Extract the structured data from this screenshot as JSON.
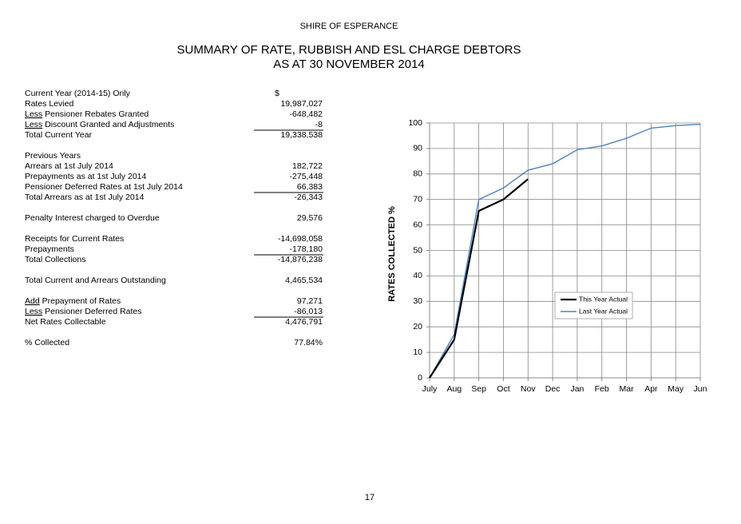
{
  "header": {
    "org": "SHIRE OF ESPERANCE",
    "title": "SUMMARY OF RATE, RUBBISH AND ESL CHARGE DEBTORS",
    "subtitle": "AS AT 30 NOVEMBER 2014"
  },
  "table": {
    "groups": [
      [
        {
          "label": "Current Year (2014-15) Only",
          "value": "$"
        },
        {
          "label": "Rates Levied",
          "value": "19,987,027"
        },
        {
          "prefix": "Less",
          "label": " Pensioner Rebates Granted",
          "value": "-648,482"
        },
        {
          "prefix": "Less",
          "label": " Discount Granted and Adjustments",
          "value": "-8",
          "rule": true
        },
        {
          "label": "Total Current Year",
          "value": "19,338,538"
        }
      ],
      [
        {
          "label": "Previous Years"
        },
        {
          "label": "Arrears at 1st July 2014",
          "value": "182,722"
        },
        {
          "label": "Prepayments as at 1st July 2014",
          "value": "-275,448"
        },
        {
          "label": "Pensioner Deferred Rates at 1st July 2014",
          "value": "66,383",
          "rule": true
        },
        {
          "label": "Total Arrears as at 1st July 2014",
          "value": "-26,343"
        }
      ],
      [
        {
          "label": "Penalty Interest charged to Overdue",
          "value": "29,576"
        }
      ],
      [
        {
          "label": "Receipts for Current Rates",
          "value": "-14,698,058"
        },
        {
          "label": "Prepayments",
          "value": "-178,180",
          "rule": true
        },
        {
          "label": "Total Collections",
          "value": "-14,876,238"
        }
      ],
      [
        {
          "label": "Total Current and Arrears Outstanding",
          "value": "4,465,534"
        }
      ],
      [
        {
          "prefix": "Add",
          "label": " Prepayment of Rates",
          "value": "97,271"
        },
        {
          "prefix": "Less",
          "label": " Pensioner Deferred Rates",
          "value": "-86,013",
          "rule": true
        },
        {
          "label": "Net Rates Collectable",
          "value": "4,476,791"
        }
      ],
      [
        {
          "label": "% Collected",
          "value": "77.84%"
        }
      ]
    ]
  },
  "chart_data": {
    "type": "line",
    "y_label": "RATES COLLECTED %",
    "categories": [
      "July",
      "Aug",
      "Sep",
      "Oct",
      "Nov",
      "Dec",
      "Jan",
      "Feb",
      "Mar",
      "Apr",
      "May",
      "Jun"
    ],
    "series": [
      {
        "name": "This Year Actual",
        "color": "#000000",
        "values": [
          0,
          15,
          65.5,
          70,
          78,
          null,
          null,
          null,
          null,
          null,
          null,
          null
        ]
      },
      {
        "name": "Last Year Actual",
        "color": "#4f81bd",
        "values": [
          0,
          17,
          70,
          74.5,
          81.5,
          84,
          89.5,
          91,
          94,
          98,
          99,
          99.5
        ]
      }
    ],
    "ylim": [
      0,
      100
    ],
    "yticks": [
      0,
      10,
      20,
      30,
      40,
      50,
      60,
      70,
      80,
      90,
      100
    ],
    "grid": true,
    "legend": "right"
  },
  "page_number": "17"
}
